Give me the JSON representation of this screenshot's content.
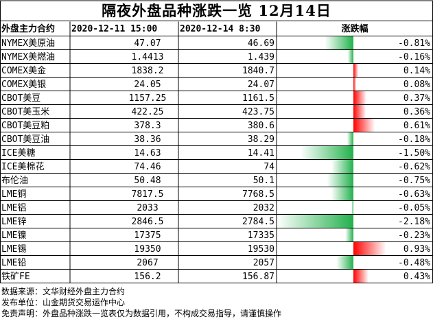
{
  "title": "隔夜外盘品种涨跌一览 12月14日",
  "columns": [
    "外盘主力合约",
    "2020-12-11 15:00",
    "2020-12-14 8:30",
    "涨跌幅"
  ],
  "notes": [
    {
      "k": "数据来源：",
      "v": "文华财经外盘主力合约"
    },
    {
      "k": "发布单位：",
      "v": "山金期货交易运作中心"
    },
    {
      "k": "免责声明：",
      "v": "外盘品种涨跌一览表仅为数据引用，不构成交易指导，请谨慎操作"
    }
  ],
  "colors": {
    "up": "#ff0000",
    "down": "#22b14c",
    "grid": "#000000",
    "hdr_text": "#000000"
  },
  "chart_data": {
    "type": "table",
    "title": "隔夜外盘品种涨跌一览 12月14日",
    "columns": [
      "外盘主力合约",
      "2020-12-11 15:00",
      "2020-12-14 8:30",
      "涨跌幅"
    ],
    "rows": [
      {
        "name": "NYMEX美原油",
        "prev": "47.07",
        "curr": "46.69",
        "change": -0.81,
        "label": "-0.81%"
      },
      {
        "name": "NYMEX美燃油",
        "prev": "1.4413",
        "curr": "1.439",
        "change": -0.16,
        "label": "-0.16%"
      },
      {
        "name": "COMEX美金",
        "prev": "1838.2",
        "curr": "1840.7",
        "change": 0.14,
        "label": "0.14%"
      },
      {
        "name": "COMEX美银",
        "prev": "24.05",
        "curr": "24.07",
        "change": 0.08,
        "label": "0.08%"
      },
      {
        "name": "CBOT美豆",
        "prev": "1157.25",
        "curr": "1161.5",
        "change": 0.37,
        "label": "0.37%"
      },
      {
        "name": "CBOT美玉米",
        "prev": "422.25",
        "curr": "423.75",
        "change": 0.36,
        "label": "0.36%"
      },
      {
        "name": "CBOT美豆粕",
        "prev": "378.3",
        "curr": "380.6",
        "change": 0.61,
        "label": "0.61%"
      },
      {
        "name": "CBOT美豆油",
        "prev": "38.36",
        "curr": "38.29",
        "change": -0.18,
        "label": "-0.18%"
      },
      {
        "name": "ICE美糖",
        "prev": "14.63",
        "curr": "14.41",
        "change": -1.5,
        "label": "-1.50%"
      },
      {
        "name": "ICE美棉花",
        "prev": "74.46",
        "curr": "74",
        "change": -0.62,
        "label": "-0.62%"
      },
      {
        "name": "布伦油",
        "prev": "50.48",
        "curr": "50.1",
        "change": -0.75,
        "label": "-0.75%"
      },
      {
        "name": "LME铜",
        "prev": "7817.5",
        "curr": "7768.5",
        "change": -0.63,
        "label": "-0.63%"
      },
      {
        "name": "LME铝",
        "prev": "2033",
        "curr": "2032",
        "change": -0.05,
        "label": "-0.05%"
      },
      {
        "name": "LME锌",
        "prev": "2846.5",
        "curr": "2784.5",
        "change": -2.18,
        "label": "-2.18%"
      },
      {
        "name": "LME镍",
        "prev": "17375",
        "curr": "17335",
        "change": -0.23,
        "label": "-0.23%"
      },
      {
        "name": "LME锡",
        "prev": "19350",
        "curr": "19530",
        "change": 0.93,
        "label": "0.93%"
      },
      {
        "name": "LME铅",
        "prev": "2067",
        "curr": "2057",
        "change": -0.48,
        "label": "-0.48%"
      },
      {
        "name": "铁矿FE",
        "prev": "156.2",
        "curr": "156.87",
        "change": 0.43,
        "label": "0.43%"
      }
    ],
    "change_range": [
      -2.18,
      2.18
    ]
  }
}
